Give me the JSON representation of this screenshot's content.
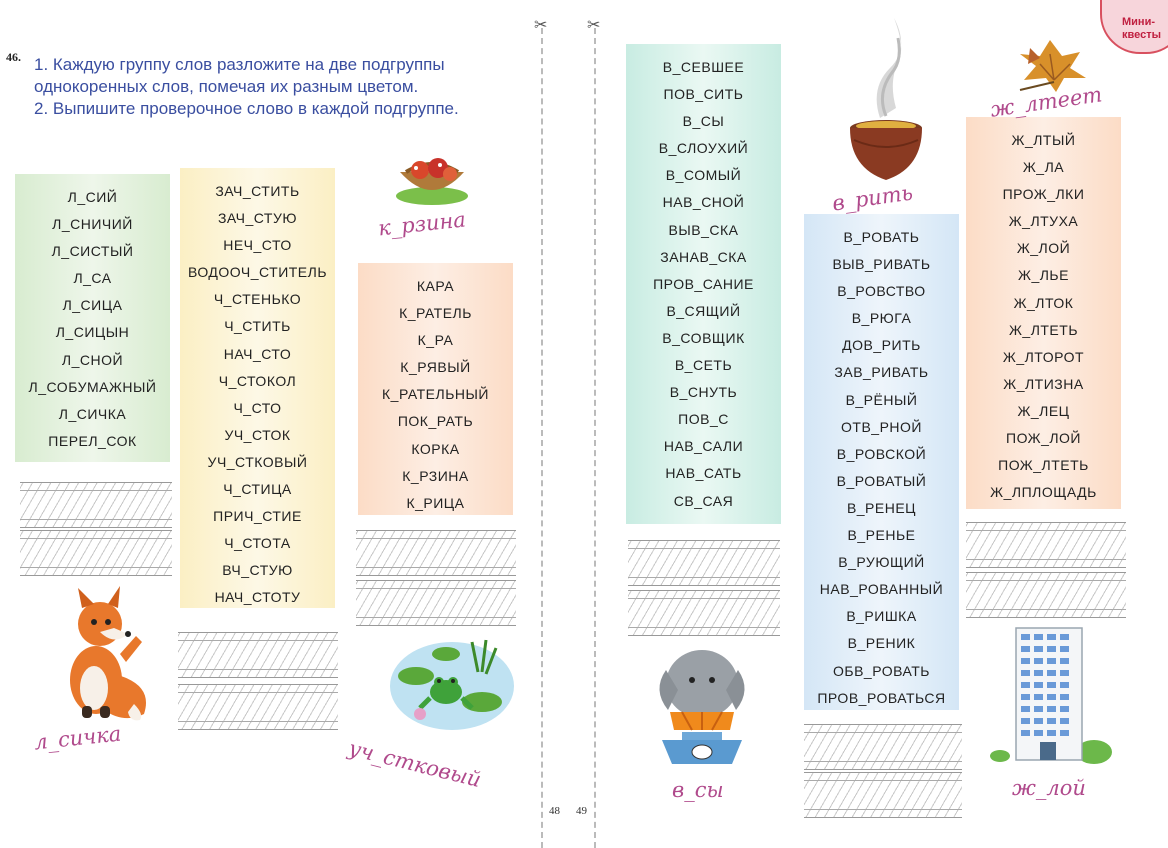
{
  "exercise": {
    "number": "46.",
    "lines": [
      "1. Каждую группу слов разложите на две подгруппы",
      "однокоренных слов, помечая их разным цветом.",
      "2. Выпишите проверочное слово в каждой подгруппе."
    ]
  },
  "badge": {
    "line1": "Мини-",
    "line2": "квесты"
  },
  "page_numbers": {
    "left": "48",
    "right": "49"
  },
  "captions": {
    "fox": "л_сичка",
    "basket": "к_рзина",
    "frog": "уч_стковый",
    "pot": "в_рить",
    "elephant": "в_сы",
    "leaves": "ж_лтеет",
    "building": "ж_лой"
  },
  "columns": {
    "c1": [
      "Л_СИЙ",
      "Л_СНИЧИЙ",
      "Л_СИСТЫЙ",
      "Л_СА",
      "Л_СИЦА",
      "Л_СИЦЫН",
      "Л_СНОЙ",
      "Л_СОБУМАЖНЫЙ",
      "Л_СИЧКА",
      "ПЕРЕЛ_СОК"
    ],
    "c2": [
      "ЗАЧ_СТИТЬ",
      "ЗАЧ_СТУЮ",
      "НЕЧ_СТО",
      "ВОДООЧ_СТИТЕЛЬ",
      "Ч_СТЕНЬКО",
      "Ч_СТИТЬ",
      "НАЧ_СТО",
      "Ч_СТОКОЛ",
      "Ч_СТО",
      "УЧ_СТОК",
      "УЧ_СТКОВЫЙ",
      "Ч_СТИЦА",
      "ПРИЧ_СТИЕ",
      "Ч_СТОТА",
      "ВЧ_СТУЮ",
      "НАЧ_СТОТУ"
    ],
    "c3": [
      "КАРА",
      "К_РАТЕЛЬ",
      "К_РА",
      "К_РЯВЫЙ",
      "К_РАТЕЛЬНЫЙ",
      "ПОК_РАТЬ",
      "КОРКА",
      "К_РЗИНА",
      "К_РИЦА"
    ],
    "c4": [
      "В_СЕВШЕЕ",
      "ПОВ_СИТЬ",
      "В_СЫ",
      "В_СЛОУХИЙ",
      "В_СОМЫЙ",
      "НАВ_СНОЙ",
      "ВЫВ_СКА",
      "ЗАНАВ_СКА",
      "ПРОВ_САНИЕ",
      "В_СЯЩИЙ",
      "В_СОВЩИК",
      "В_СЕТЬ",
      "В_СНУТЬ",
      "ПОВ_С",
      "НАВ_САЛИ",
      "НАВ_САТЬ",
      "СВ_САЯ"
    ],
    "c5": [
      "В_РОВАТЬ",
      "ВЫВ_РИВАТЬ",
      "В_РОВСТВО",
      "В_РЮГА",
      "ДОВ_РИТЬ",
      "ЗАВ_РИВАТЬ",
      "В_РЁНЫЙ",
      "ОТВ_РНОЙ",
      "В_РОВСКОЙ",
      "В_РОВАТЫЙ",
      "В_РЕНЕЦ",
      "В_РЕНЬЕ",
      "В_РУЮЩИЙ",
      "НАВ_РОВАННЫЙ",
      "В_РИШКА",
      "В_РЕНИК",
      "ОБВ_РОВАТЬ",
      "ПРОВ_РОВАТЬСЯ"
    ],
    "c6": [
      "Ж_ЛТЫЙ",
      "Ж_ЛА",
      "ПРОЖ_ЛКИ",
      "Ж_ЛТУХА",
      "Ж_ЛОЙ",
      "Ж_ЛЬЕ",
      "Ж_ЛТОК",
      "Ж_ЛТЕТЬ",
      "Ж_ЛТОРОТ",
      "Ж_ЛТИЗНА",
      "Ж_ЛЕЦ",
      "ПОЖ_ЛОЙ",
      "ПОЖ_ЛТЕТЬ",
      "Ж_ЛПЛОЩАДЬ"
    ]
  }
}
